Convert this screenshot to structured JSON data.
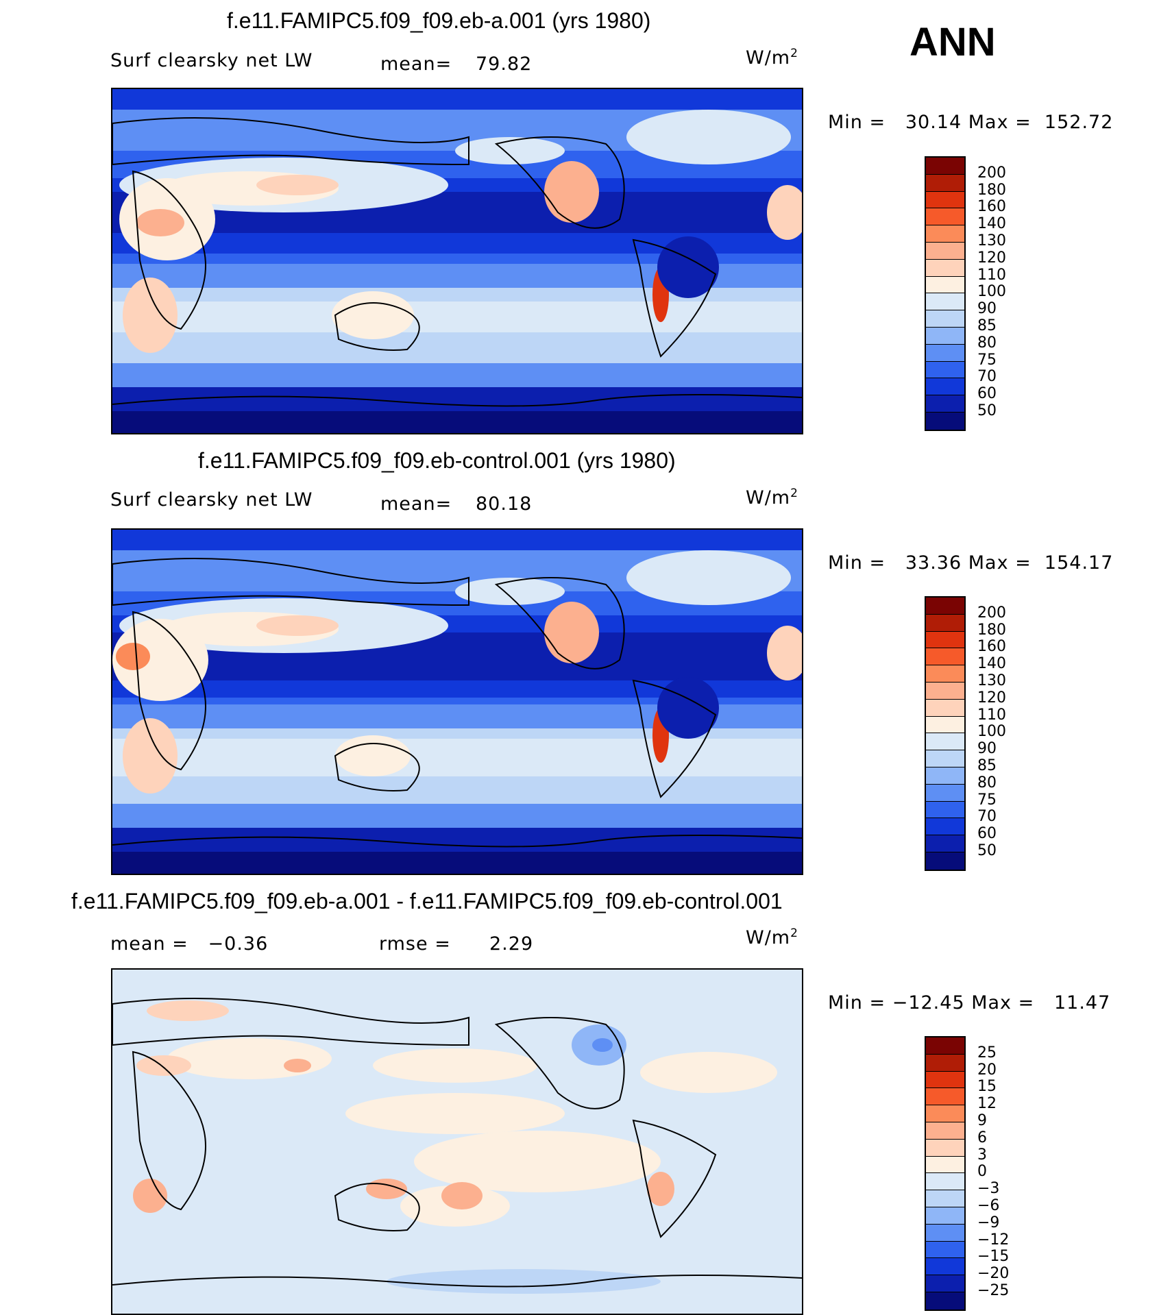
{
  "season": "ANN",
  "panels": [
    {
      "title": "f.e11.FAMIPC5.f09_f09.eb-a.001 (yrs 1980)",
      "left_label": "Surf clearsky net LW",
      "stat_label": "mean=",
      "stat_value": "79.82",
      "units": "W/m",
      "units_sup": "2",
      "minmax": "Min =   30.14 Max =  152.72",
      "colorbar": {
        "colors": [
          "#7a0403",
          "#b01d06",
          "#e0340f",
          "#f65a2a",
          "#fb8b59",
          "#fcb08f",
          "#fed3bb",
          "#fdf0e1",
          "#dbe9f7",
          "#bdd6f6",
          "#8fb6f7",
          "#5e8ff4",
          "#2f62ee",
          "#1138d9",
          "#0c1fae",
          "#060c7a"
        ],
        "labels": [
          "200",
          "180",
          "160",
          "140",
          "130",
          "120",
          "110",
          "100",
          "90",
          "85",
          "80",
          "75",
          "70",
          "60",
          "50"
        ]
      }
    },
    {
      "title": "f.e11.FAMIPC5.f09_f09.eb-control.001 (yrs 1980)",
      "left_label": "Surf clearsky net LW",
      "stat_label": "mean=",
      "stat_value": "80.18",
      "units": "W/m",
      "units_sup": "2",
      "minmax": "Min =   33.36 Max =  154.17",
      "colorbar": {
        "colors": [
          "#7a0403",
          "#b01d06",
          "#e0340f",
          "#f65a2a",
          "#fb8b59",
          "#fcb08f",
          "#fed3bb",
          "#fdf0e1",
          "#dbe9f7",
          "#bdd6f6",
          "#8fb6f7",
          "#5e8ff4",
          "#2f62ee",
          "#1138d9",
          "#0c1fae",
          "#060c7a"
        ],
        "labels": [
          "200",
          "180",
          "160",
          "140",
          "130",
          "120",
          "110",
          "100",
          "90",
          "85",
          "80",
          "75",
          "70",
          "60",
          "50"
        ]
      }
    },
    {
      "title": "f.e11.FAMIPC5.f09_f09.eb-a.001 - f.e11.FAMIPC5.f09_f09.eb-control.001",
      "left_label": "mean =   −0.36",
      "stat_label": "rmse =",
      "stat_value": "2.29",
      "units": "W/m",
      "units_sup": "2",
      "minmax": "Min = −12.45 Max =   11.47",
      "colorbar": {
        "colors": [
          "#7a0403",
          "#b01d06",
          "#e0340f",
          "#f65a2a",
          "#fb8b59",
          "#fcb08f",
          "#fed3bb",
          "#fdf0e1",
          "#dbe9f7",
          "#bdd6f6",
          "#8fb6f7",
          "#5e8ff4",
          "#2f62ee",
          "#1138d9",
          "#0c1fae",
          "#060c7a"
        ],
        "labels": [
          "25",
          "20",
          "15",
          "12",
          "9",
          "6",
          "3",
          "0",
          "−3",
          "−6",
          "−9",
          "−12",
          "−15",
          "−20",
          "−25"
        ]
      }
    }
  ]
}
